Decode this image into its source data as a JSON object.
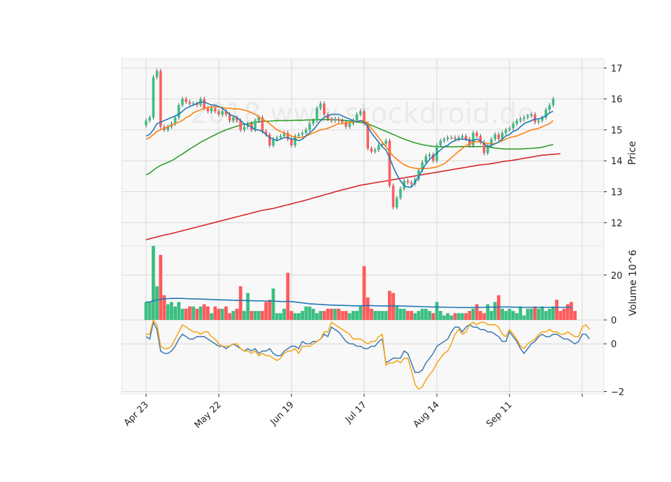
{
  "chart_data": {
    "type": "candlestick",
    "title": "",
    "watermark": "2018 www.stockdroid.de",
    "x_tick_labels": [
      "Apr 23",
      "May 22",
      "Jun 19",
      "Jul 17",
      "Aug 14",
      "Sep 11",
      ""
    ],
    "x_tick_indices": [
      0,
      20,
      40,
      60,
      80,
      100,
      120
    ],
    "colors": {
      "up": "#3cbf82",
      "down": "#fd5d5d",
      "up_volume": "#3cbf82",
      "down_volume": "#ff5b5b"
    },
    "price_panel": {
      "ylabel": "Price",
      "ylim": [
        11.25,
        17.3
      ],
      "yticks": [
        12,
        13,
        14,
        15,
        16,
        17
      ],
      "close": [
        15.3,
        15.4,
        16.7,
        16.9,
        15.1,
        15.0,
        15.1,
        15.2,
        15.4,
        15.8,
        16.0,
        15.9,
        15.85,
        15.85,
        15.8,
        16.0,
        15.7,
        15.6,
        15.7,
        15.6,
        15.5,
        15.6,
        15.5,
        15.3,
        15.4,
        15.3,
        15.0,
        15.1,
        15.2,
        15.0,
        15.3,
        15.4,
        14.95,
        14.85,
        14.5,
        14.7,
        14.75,
        14.8,
        14.9,
        14.7,
        14.5,
        14.8,
        14.85,
        14.9,
        15.0,
        15.2,
        15.3,
        15.7,
        15.85,
        15.5,
        15.35,
        15.3,
        15.35,
        15.3,
        15.25,
        15.1,
        15.2,
        15.3,
        15.5,
        15.6,
        15.2,
        14.4,
        14.3,
        14.35,
        14.5,
        14.55,
        14.65,
        13.2,
        12.5,
        12.8,
        13.1,
        13.35,
        13.3,
        13.25,
        13.4,
        13.7,
        13.95,
        14.15,
        14.2,
        14.0,
        14.5,
        14.65,
        14.7,
        14.75,
        14.75,
        14.7,
        14.75,
        14.8,
        14.7,
        14.5,
        14.9,
        14.8,
        14.6,
        14.25,
        14.5,
        14.7,
        14.85,
        14.7,
        14.9,
        15.0,
        15.05,
        15.2,
        15.3,
        15.35,
        15.4,
        15.45,
        15.5,
        15.25,
        15.3,
        15.4,
        15.65,
        15.8,
        16.0
      ],
      "sma_short": [
        14.8,
        14.85,
        15.0,
        15.2,
        15.25,
        15.3,
        15.35,
        15.4,
        15.45,
        15.5,
        15.6,
        15.7,
        15.75,
        15.8,
        15.85,
        15.9,
        15.9,
        15.85,
        15.8,
        15.8,
        15.75,
        15.7,
        15.6,
        15.5,
        15.45,
        15.4,
        15.3,
        15.2,
        15.15,
        15.1,
        15.0,
        15.0,
        14.95,
        14.85,
        14.75,
        14.7,
        14.65,
        14.7,
        14.75,
        14.75,
        14.7,
        14.7,
        14.65,
        14.7,
        14.8,
        14.9,
        15.0,
        15.15,
        15.3,
        15.4,
        15.45,
        15.5,
        15.5,
        15.5,
        15.45,
        15.4,
        15.35,
        15.3,
        15.25,
        15.3,
        15.25,
        15.1,
        14.9,
        14.75,
        14.6,
        14.45,
        14.35,
        14.1,
        13.8,
        13.55,
        13.35,
        13.2,
        13.15,
        13.15,
        13.3,
        13.5,
        13.7,
        13.9,
        14.05,
        14.15,
        14.25,
        14.35,
        14.45,
        14.5,
        14.6,
        14.65,
        14.7,
        14.7,
        14.7,
        14.65,
        14.65,
        14.7,
        14.65,
        14.55,
        14.45,
        14.5,
        14.55,
        14.6,
        14.7,
        14.8,
        14.85,
        14.95,
        15.0,
        15.1,
        15.2,
        15.25,
        15.3,
        15.35,
        15.35,
        15.4,
        15.45,
        15.55,
        15.6
      ],
      "sma_mid": [
        14.7,
        14.75,
        14.85,
        14.95,
        15.0,
        15.05,
        15.1,
        15.15,
        15.2,
        15.25,
        15.3,
        15.4,
        15.45,
        15.55,
        15.6,
        15.65,
        15.7,
        15.72,
        15.74,
        15.74,
        15.74,
        15.72,
        15.7,
        15.7,
        15.68,
        15.68,
        15.66,
        15.64,
        15.6,
        15.55,
        15.5,
        15.42,
        15.35,
        15.28,
        15.2,
        15.1,
        15.0,
        14.95,
        14.9,
        14.85,
        14.8,
        14.76,
        14.75,
        14.76,
        14.8,
        14.85,
        14.9,
        14.95,
        15.0,
        15.02,
        15.05,
        15.1,
        15.15,
        15.2,
        15.2,
        15.22,
        15.24,
        15.25,
        15.27,
        15.3,
        15.3,
        15.2,
        15.05,
        14.9,
        14.75,
        14.6,
        14.45,
        14.3,
        14.15,
        14.05,
        13.95,
        13.88,
        13.82,
        13.78,
        13.76,
        13.75,
        13.75,
        13.75,
        13.76,
        13.78,
        13.8,
        13.85,
        13.9,
        14.0,
        14.1,
        14.2,
        14.3,
        14.4,
        14.48,
        14.55,
        14.6,
        14.62,
        14.6,
        14.58,
        14.56,
        14.55,
        14.55,
        14.6,
        14.65,
        14.7,
        14.75,
        14.78,
        14.8,
        14.85,
        14.9,
        14.95,
        15.0,
        15.02,
        15.05,
        15.1,
        15.15,
        15.2,
        15.3
      ],
      "sma_long": [
        13.55,
        13.6,
        13.7,
        13.78,
        13.85,
        13.9,
        13.95,
        14.0,
        14.07,
        14.15,
        14.22,
        14.3,
        14.38,
        14.45,
        14.52,
        14.6,
        14.66,
        14.72,
        14.78,
        14.84,
        14.9,
        14.95,
        15.0,
        15.04,
        15.08,
        15.12,
        15.15,
        15.18,
        15.2,
        15.22,
        15.24,
        15.26,
        15.27,
        15.28,
        15.28,
        15.29,
        15.3,
        15.3,
        15.3,
        15.3,
        15.3,
        15.31,
        15.31,
        15.31,
        15.32,
        15.32,
        15.32,
        15.33,
        15.33,
        15.33,
        15.33,
        15.33,
        15.33,
        15.32,
        15.31,
        15.3,
        15.29,
        15.28,
        15.26,
        15.24,
        15.22,
        15.2,
        15.15,
        15.1,
        15.05,
        15.0,
        14.95,
        14.9,
        14.85,
        14.8,
        14.75,
        14.7,
        14.66,
        14.62,
        14.58,
        14.55,
        14.52,
        14.5,
        14.48,
        14.47,
        14.46,
        14.45,
        14.45,
        14.45,
        14.45,
        14.45,
        14.46,
        14.46,
        14.46,
        14.46,
        14.46,
        14.46,
        14.46,
        14.46,
        14.45,
        14.43,
        14.41,
        14.4,
        14.39,
        14.38,
        14.38,
        14.38,
        14.38,
        14.38,
        14.39,
        14.4,
        14.4,
        14.41,
        14.42,
        14.44,
        14.47,
        14.5,
        14.52
      ],
      "sma_200": [
        11.45,
        11.48,
        11.51,
        11.54,
        11.57,
        11.6,
        11.62,
        11.65,
        11.68,
        11.71,
        11.74,
        11.77,
        11.8,
        11.83,
        11.86,
        11.89,
        11.92,
        11.95,
        11.98,
        12.01,
        12.04,
        12.07,
        12.1,
        12.13,
        12.16,
        12.19,
        12.22,
        12.25,
        12.28,
        12.31,
        12.34,
        12.37,
        12.4,
        12.42,
        12.44,
        12.46,
        12.49,
        12.52,
        12.55,
        12.58,
        12.61,
        12.64,
        12.67,
        12.7,
        12.73,
        12.76,
        12.8,
        12.83,
        12.86,
        12.9,
        12.93,
        12.96,
        13.0,
        13.03,
        13.06,
        13.09,
        13.12,
        13.15,
        13.18,
        13.21,
        13.23,
        13.25,
        13.27,
        13.29,
        13.31,
        13.33,
        13.35,
        13.37,
        13.39,
        13.41,
        13.43,
        13.45,
        13.47,
        13.49,
        13.51,
        13.53,
        13.55,
        13.57,
        13.59,
        13.61,
        13.63,
        13.65,
        13.67,
        13.69,
        13.71,
        13.73,
        13.75,
        13.77,
        13.79,
        13.81,
        13.83,
        13.85,
        13.87,
        13.88,
        13.89,
        13.91,
        13.93,
        13.95,
        13.97,
        13.99,
        14.0,
        14.02,
        14.04,
        14.06,
        14.08,
        14.1,
        14.12,
        14.14,
        14.16,
        14.18,
        14.19,
        14.2,
        14.21,
        14.22,
        14.23
      ]
    },
    "volume_panel": {
      "ylabel": "Volume  10^6",
      "ylim": [
        0,
        33
      ],
      "yticks": [
        0,
        20
      ],
      "volume": [
        8,
        8,
        33,
        15,
        29,
        11,
        7,
        8,
        6,
        8,
        5,
        5,
        6,
        6,
        5,
        6,
        7,
        6,
        3,
        6,
        5,
        5,
        6,
        3,
        4,
        5,
        15,
        4,
        12,
        4,
        4,
        4,
        4,
        8,
        9,
        14,
        3,
        3,
        5,
        21,
        4,
        3,
        3,
        4,
        6,
        6,
        5,
        3,
        4,
        4,
        5,
        5,
        5,
        5,
        4,
        4,
        3,
        4,
        4,
        6,
        24,
        10,
        5,
        4,
        4,
        4,
        4,
        13,
        12,
        6,
        5,
        5,
        4,
        4,
        3,
        4,
        5,
        5,
        4,
        3,
        8,
        4,
        2,
        3,
        2,
        3,
        3,
        3,
        3,
        4,
        5,
        7,
        4,
        3,
        7,
        4,
        8,
        11,
        5,
        4,
        5,
        4,
        3,
        6,
        2,
        5,
        5,
        6,
        5,
        6,
        4,
        5,
        6,
        9,
        4,
        5,
        7,
        8,
        4
      ],
      "volume_ma": [
        8,
        8,
        8.5,
        9,
        9.2,
        9.4,
        9.5,
        9.6,
        9.6,
        9.6,
        9.6,
        9.5,
        9.4,
        9.4,
        9.3,
        9.3,
        9.2,
        9.2,
        9.1,
        9.0,
        9.0,
        8.9,
        8.9,
        8.8,
        8.8,
        8.7,
        8.7,
        8.7,
        8.6,
        8.6,
        8.5,
        8.5,
        8.5,
        8.4,
        8.4,
        8.4,
        8.3,
        8.2,
        8.2,
        8.3,
        8.2,
        8.0,
        7.8,
        7.6,
        7.4,
        7.2,
        7.1,
        7.0,
        6.9,
        6.8,
        6.7,
        6.6,
        6.6,
        6.5,
        6.5,
        6.4,
        6.4,
        6.3,
        6.3,
        6.3,
        6.4,
        6.4,
        6.4,
        6.3,
        6.3,
        6.2,
        6.2,
        6.3,
        6.3,
        6.3,
        6.2,
        6.2,
        6.1,
        6.1,
        6.0,
        6.0,
        5.9,
        5.9,
        5.8,
        5.8,
        5.8,
        5.7,
        5.7,
        5.6,
        5.6,
        5.6,
        5.5,
        5.5,
        5.5,
        5.5,
        5.5,
        5.6,
        5.6,
        5.6,
        5.7,
        5.7,
        5.7,
        5.8,
        5.8,
        5.8,
        5.8,
        5.7,
        5.7,
        5.7,
        5.6,
        5.6,
        5.6,
        5.6,
        5.6,
        5.6,
        5.6,
        5.6,
        5.6,
        5.6,
        5.6,
        5.6,
        5.6,
        5.6
      ]
    },
    "indicator_panel": {
      "ylim": [
        -2.1,
        1.0
      ],
      "yticks": [
        -2,
        0
      ],
      "series": [
        {
          "name": "macd",
          "color": "#3a78b0",
          "values": [
            0.3,
            0.2,
            0.9,
            0.6,
            -0.3,
            -0.4,
            -0.4,
            -0.3,
            -0.1,
            0.2,
            0.4,
            0.3,
            0.2,
            0.2,
            0.3,
            0.3,
            0.3,
            0.2,
            0.1,
            0.0,
            -0.1,
            -0.1,
            -0.2,
            -0.1,
            0.0,
            -0.1,
            -0.2,
            -0.3,
            -0.2,
            -0.3,
            -0.2,
            -0.4,
            -0.3,
            -0.3,
            -0.2,
            -0.4,
            -0.5,
            -0.5,
            -0.3,
            -0.2,
            -0.1,
            -0.1,
            -0.2,
            0.1,
            0.0,
            0.0,
            0.1,
            0.1,
            0.2,
            0.4,
            0.3,
            0.7,
            0.6,
            0.5,
            0.3,
            0.1,
            0.0,
            0.0,
            -0.1,
            -0.1,
            -0.2,
            -0.2,
            -0.1,
            -0.1,
            0.1,
            0.2,
            -0.8,
            -0.7,
            -0.6,
            -0.6,
            -0.6,
            -0.3,
            -0.4,
            -0.8,
            -1.2,
            -1.2,
            -1.1,
            -0.8,
            -0.6,
            -0.4,
            -0.1,
            0.0,
            0.1,
            0.2,
            0.5,
            0.7,
            0.7,
            0.5,
            0.7,
            0.8,
            0.7,
            0.7,
            0.6,
            0.6,
            0.5,
            0.5,
            0.4,
            0.3,
            0.1,
            0.1,
            0.5,
            0.3,
            0.1,
            -0.2,
            -0.4,
            -0.2,
            0.0,
            0.1,
            0.3,
            0.4,
            0.3,
            0.3,
            0.4,
            0.4,
            0.3,
            0.2,
            0.2,
            0.1,
            0.0,
            0.1,
            0.4,
            0.4,
            0.2
          ]
        },
        {
          "name": "signal",
          "color": "#f5a30f",
          "values": [
            0.4,
            0.4,
            1.0,
            0.8,
            -0.1,
            -0.2,
            -0.2,
            -0.1,
            0.2,
            0.5,
            0.8,
            0.7,
            0.6,
            0.5,
            0.5,
            0.4,
            0.5,
            0.5,
            0.3,
            0.2,
            0.0,
            -0.1,
            -0.1,
            -0.1,
            0.0,
            0.0,
            -0.2,
            -0.3,
            -0.3,
            -0.4,
            -0.3,
            -0.5,
            -0.4,
            -0.5,
            -0.5,
            -0.6,
            -0.7,
            -0.6,
            -0.4,
            -0.3,
            -0.3,
            -0.2,
            -0.4,
            -0.1,
            -0.1,
            -0.1,
            0.0,
            0.1,
            0.2,
            0.5,
            0.5,
            0.9,
            0.8,
            0.7,
            0.6,
            0.5,
            0.4,
            0.2,
            0.2,
            0.2,
            0.1,
            0.0,
            0.1,
            0.1,
            0.3,
            0.4,
            -0.9,
            -0.8,
            -0.8,
            -0.7,
            -0.8,
            -0.6,
            -0.6,
            -1.1,
            -1.7,
            -1.9,
            -1.8,
            -1.5,
            -1.3,
            -1.1,
            -0.8,
            -0.6,
            -0.4,
            -0.3,
            0.0,
            0.4,
            0.6,
            0.4,
            0.5,
            0.8,
            0.9,
            0.8,
            0.9,
            0.9,
            0.8,
            0.8,
            0.8,
            0.7,
            0.4,
            0.3,
            0.6,
            0.4,
            0.2,
            -0.1,
            -0.2,
            0.0,
            0.1,
            0.2,
            0.4,
            0.5,
            0.5,
            0.6,
            0.5,
            0.5,
            0.4,
            0.4,
            0.5,
            0.4,
            0.3,
            0.3,
            0.7,
            0.8,
            0.6
          ]
        }
      ]
    }
  }
}
